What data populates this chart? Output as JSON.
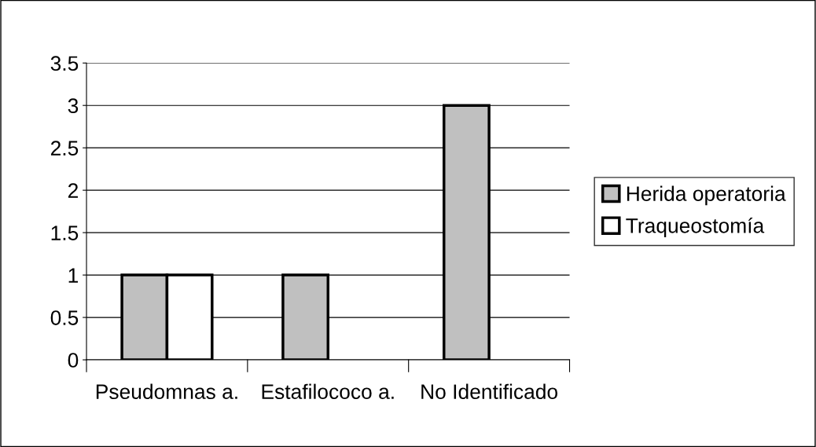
{
  "chart_data": {
    "type": "bar",
    "categories": [
      "Pseudomnas a.",
      "Estafilococo a.",
      "No Identificado"
    ],
    "series": [
      {
        "name": "Herida operatoria",
        "color": "#c0c0c0",
        "values": [
          1,
          1,
          3
        ]
      },
      {
        "name": "Traqueostomía",
        "color": "#ffffff",
        "values": [
          1,
          0,
          0
        ]
      }
    ],
    "ylim": [
      0,
      3.5
    ],
    "yticks": [
      0,
      0.5,
      1,
      1.5,
      2,
      2.5,
      3,
      3.5
    ],
    "grid": "y",
    "legend": "right"
  }
}
